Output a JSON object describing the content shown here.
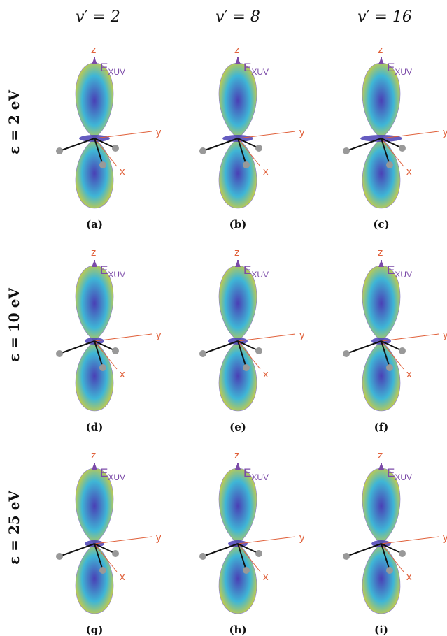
{
  "columns": [
    {
      "label": "v′ = 2"
    },
    {
      "label": "v′ = 8"
    },
    {
      "label": "v′ = 16"
    }
  ],
  "rows": [
    {
      "label": "ε = 2 eV"
    },
    {
      "label": "ε = 10 eV"
    },
    {
      "label": "ε = 25 eV"
    }
  ],
  "axes": {
    "z": "z",
    "y": "y",
    "x": "x",
    "field_main": "E",
    "field_sub": "XUV"
  },
  "panels": [
    {
      "caption": "(a)"
    },
    {
      "caption": "(b)"
    },
    {
      "caption": "(c)"
    },
    {
      "caption": "(d)"
    },
    {
      "caption": "(e)"
    },
    {
      "caption": "(f)"
    },
    {
      "caption": "(g)"
    },
    {
      "caption": "(h)"
    },
    {
      "caption": "(i)"
    }
  ],
  "colors": {
    "axis": "#e0603a",
    "field": "#7b4aa8",
    "bond": "#111111",
    "atom": "#999999",
    "lobe_center": "#4a3fb5",
    "lobe_mid": "#3fb6d6",
    "lobe_edge": "#f2d21a"
  }
}
